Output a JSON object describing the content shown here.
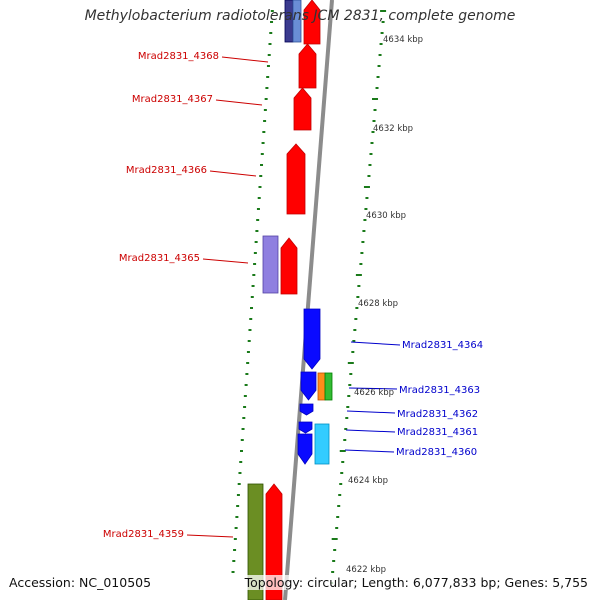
{
  "title": "Methylobacterium radiotolerans JCM 2831, complete genome",
  "footer": {
    "accession": "Accession: NC_010505",
    "summary": "Topology: circular; Length: 6,077,833 bp; Genes: 5,755"
  },
  "colors": {
    "forward_label": "#cc0000",
    "reverse_label": "#0000cc",
    "tick": "#1a7a1a",
    "backbone": "#8c8c8c"
  },
  "scale_labels": [
    "4634 kbp",
    "4632 kbp",
    "4630 kbp",
    "4628 kbp",
    "4626 kbp",
    "4624 kbp",
    "4622 kbp"
  ],
  "left_labels": [
    "Mrad2831_4368",
    "Mrad2831_4367",
    "Mrad2831_4366",
    "Mrad2831_4365",
    "Mrad2831_4359"
  ],
  "right_labels": [
    "Mrad2831_4364",
    "Mrad2831_4363",
    "Mrad2831_4362",
    "Mrad2831_4361",
    "Mrad2831_4360"
  ]
}
